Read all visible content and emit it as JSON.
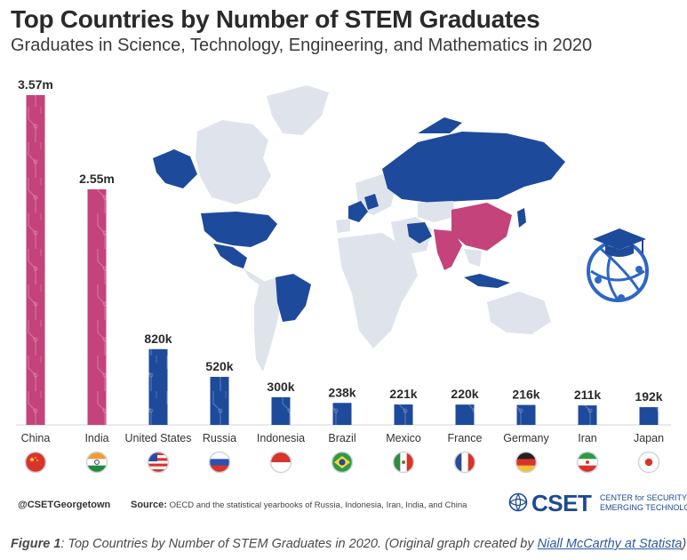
{
  "header": {
    "title": "Top Countries by Number of STEM Graduates",
    "subtitle": "Graduates in Science, Technology, Engineering, and Mathematics in 2020"
  },
  "chart_data": {
    "type": "bar",
    "title": "Top Countries by Number of STEM Graduates",
    "subtitle": "Graduates in Science, Technology, Engineering, and Mathematics in 2020",
    "categories": [
      "China",
      "India",
      "United States",
      "Russia",
      "Indonesia",
      "Brazil",
      "Mexico",
      "France",
      "Germany",
      "Iran",
      "Japan"
    ],
    "values": [
      3570000,
      2550000,
      820000,
      520000,
      300000,
      238000,
      221000,
      220000,
      216000,
      211000,
      192000
    ],
    "data_labels": [
      "3.57m",
      "2.55m",
      "820k",
      "520k",
      "300k",
      "238k",
      "221k",
      "220k",
      "216k",
      "211k",
      "192k"
    ],
    "ylim": [
      0,
      3570000
    ],
    "grid": false,
    "legend": "none",
    "colors": {
      "highlight": "#c4437a",
      "default": "#1e4a9b",
      "map_default": "#dfe4ec"
    },
    "highlighted_categories": [
      "China",
      "India"
    ]
  },
  "footer": {
    "handle": "@CSETGeorgetown",
    "source_label": "Source:",
    "source_text": "OECD and the statistical yearbooks of Russia, Indonesia, Iran, India, and China",
    "logo_text": "CSET",
    "logo_sub_1": "CENTER for SECURITY and",
    "logo_sub_2": "EMERGING TECHNOLOGY"
  },
  "caption": {
    "figure_label": "Figure 1",
    "text": ": Top Countries by Number of STEM Graduates in 2020. (Original graph created by ",
    "link_text": "Niall McCarthy at Statista",
    "close": ")"
  },
  "icons": [
    "graduation-globe-icon",
    "cset-logo-icon"
  ]
}
